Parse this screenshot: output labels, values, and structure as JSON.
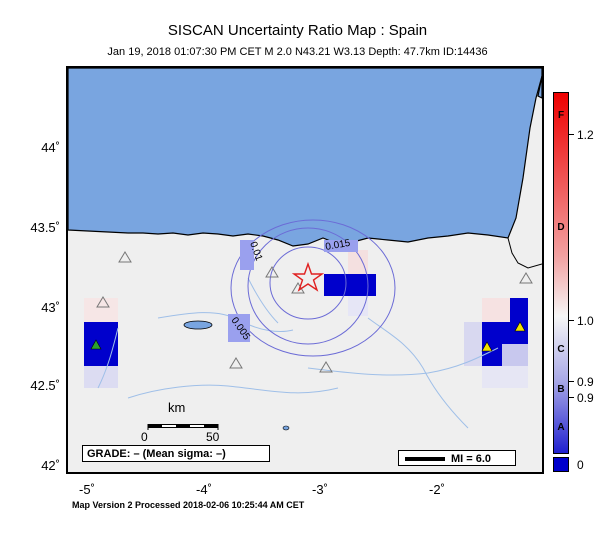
{
  "header": {
    "title": "SISCAN Uncertainty Ratio Map : Spain",
    "subtitle": "Jan 19, 2018 01:07:30 PM CET   M 2.0   N43.21 W3.13   Depth: 47.7km   ID:14436"
  },
  "axes": {
    "lat_labels": [
      "44˚",
      "43.5˚",
      "43˚",
      "42.5˚",
      "42˚"
    ],
    "lon_labels": [
      "-5˚",
      "-4˚",
      "-3˚",
      "-2˚"
    ]
  },
  "contours": {
    "labels": [
      "0.01",
      "0.015",
      "0.005"
    ]
  },
  "scale": {
    "title": "km",
    "zero": "0",
    "fifty": "50"
  },
  "grade": {
    "text": "GRADE: – (Mean sigma: –)"
  },
  "legend": {
    "mi_text": "MI = 6.0"
  },
  "colorbar": {
    "letters": [
      "F",
      "D",
      "C",
      "B",
      "A"
    ],
    "values": [
      "1.2",
      "1.0",
      "0.9",
      "0.9",
      "0"
    ]
  },
  "footer": {
    "text": "Map Version 2 Processed 2018-02-06 10:25:44 AM CET"
  },
  "map": {
    "sea_color": "#79a5e0",
    "land_color": "#efefef",
    "epicenter": {
      "lat": 43.21,
      "lon": -3.13,
      "symbol": "star-icon"
    },
    "stations": [
      {
        "lat": 42.79,
        "lon": -5.0,
        "color": "#2ca02c"
      },
      {
        "lat": 42.76,
        "lon": -1.66,
        "color": "#f2e200"
      },
      {
        "lat": 42.89,
        "lon": -1.43,
        "color": "#f2e200"
      }
    ]
  }
}
